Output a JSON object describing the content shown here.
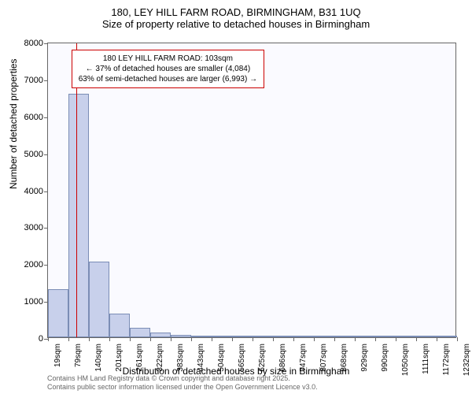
{
  "header": {
    "title": "180, LEY HILL FARM ROAD, BIRMINGHAM, B31 1UQ",
    "subtitle": "Size of property relative to detached houses in Birmingham"
  },
  "chart": {
    "type": "histogram",
    "background_color": "#fafaff",
    "border_color": "#666666",
    "bar_fill_color": "#c8d0eb",
    "bar_border_color": "#7b8db5",
    "ylabel": "Number of detached properties",
    "xlabel": "Distribution of detached houses by size in Birmingham",
    "ylim": [
      0,
      8000
    ],
    "ytick_step": 1000,
    "yticks": [
      0,
      1000,
      2000,
      3000,
      4000,
      5000,
      6000,
      7000,
      8000
    ],
    "xticks": [
      "19sqm",
      "79sqm",
      "140sqm",
      "201sqm",
      "261sqm",
      "322sqm",
      "383sqm",
      "443sqm",
      "504sqm",
      "565sqm",
      "625sqm",
      "686sqm",
      "747sqm",
      "807sqm",
      "868sqm",
      "929sqm",
      "990sqm",
      "1050sqm",
      "1111sqm",
      "1172sqm",
      "1232sqm"
    ],
    "bars": [
      {
        "x_start": 19,
        "x_end": 79,
        "value": 1300
      },
      {
        "x_start": 79,
        "x_end": 140,
        "value": 6600
      },
      {
        "x_start": 140,
        "x_end": 201,
        "value": 2050
      },
      {
        "x_start": 201,
        "x_end": 261,
        "value": 650
      },
      {
        "x_start": 261,
        "x_end": 322,
        "value": 250
      },
      {
        "x_start": 322,
        "x_end": 383,
        "value": 120
      },
      {
        "x_start": 383,
        "x_end": 443,
        "value": 60
      },
      {
        "x_start": 443,
        "x_end": 504,
        "value": 40
      },
      {
        "x_start": 504,
        "x_end": 565,
        "value": 25
      },
      {
        "x_start": 565,
        "x_end": 625,
        "value": 15
      },
      {
        "x_start": 625,
        "x_end": 686,
        "value": 10
      },
      {
        "x_start": 686,
        "x_end": 747,
        "value": 8
      },
      {
        "x_start": 747,
        "x_end": 807,
        "value": 5
      },
      {
        "x_start": 807,
        "x_end": 868,
        "value": 5
      },
      {
        "x_start": 868,
        "x_end": 929,
        "value": 3
      },
      {
        "x_start": 929,
        "x_end": 990,
        "value": 3
      },
      {
        "x_start": 990,
        "x_end": 1050,
        "value": 2
      },
      {
        "x_start": 1050,
        "x_end": 1111,
        "value": 2
      },
      {
        "x_start": 1111,
        "x_end": 1172,
        "value": 1
      },
      {
        "x_start": 1172,
        "x_end": 1232,
        "value": 1
      }
    ],
    "x_range": [
      19,
      1232
    ],
    "marker": {
      "x": 103,
      "color": "#cc0000"
    },
    "annotation": {
      "line1": "180 LEY HILL FARM ROAD: 103sqm",
      "line2": "← 37% of detached houses are smaller (4,084)",
      "line3": "63% of semi-detached houses are larger (6,993) →",
      "border_color": "#cc0000",
      "bg_color": "#ffffff",
      "font_size": 10
    }
  },
  "footer": {
    "line1": "Contains HM Land Registry data © Crown copyright and database right 2025.",
    "line2": "Contains public sector information licensed under the Open Government Licence v3.0."
  }
}
